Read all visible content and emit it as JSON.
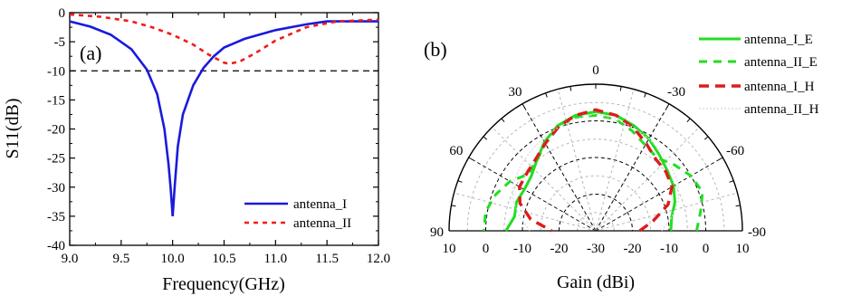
{
  "chart_data": [
    {
      "type": "line",
      "panel_label": "(a)",
      "xlabel": "Frequency(GHz)",
      "ylabel": "S11(dB)",
      "xlim": [
        9.0,
        12.0
      ],
      "ylim": [
        -40,
        0
      ],
      "xticks": [
        "9.0",
        "9.5",
        "10.0",
        "10.5",
        "11.0",
        "11.5",
        "12.0"
      ],
      "yticks": [
        "0",
        "-5",
        "-10",
        "-15",
        "-20",
        "-25",
        "-30",
        "-35",
        "-40"
      ],
      "reference_line": {
        "y": -10,
        "style": "dashed",
        "color": "#000000"
      },
      "legend_position": "bottom-right",
      "series": [
        {
          "name": "antenna_I",
          "color": "#1a1adc",
          "style": "solid",
          "x": [
            9.0,
            9.2,
            9.4,
            9.6,
            9.75,
            9.85,
            9.92,
            9.96,
            9.98,
            10.0,
            10.02,
            10.05,
            10.1,
            10.2,
            10.3,
            10.4,
            10.5,
            10.7,
            11.0,
            11.3,
            11.5,
            12.0
          ],
          "y": [
            -1.5,
            -2.4,
            -3.8,
            -6.3,
            -9.8,
            -14.0,
            -20.0,
            -26.0,
            -30.0,
            -35.0,
            -30.0,
            -23.0,
            -17.5,
            -12.5,
            -9.5,
            -7.5,
            -6.0,
            -4.5,
            -3.0,
            -2.0,
            -1.5,
            -1.5
          ]
        },
        {
          "name": "antenna_II",
          "color": "#ee1c1c",
          "style": "dashed",
          "x": [
            9.0,
            9.3,
            9.6,
            9.8,
            10.0,
            10.2,
            10.35,
            10.5,
            10.55,
            10.65,
            10.8,
            11.0,
            11.3,
            11.6,
            12.0
          ],
          "y": [
            -0.3,
            -0.7,
            -1.5,
            -2.5,
            -3.8,
            -5.5,
            -7.2,
            -8.6,
            -8.8,
            -8.4,
            -7.0,
            -4.8,
            -2.5,
            -1.5,
            -1.2
          ]
        }
      ]
    },
    {
      "type": "polar",
      "panel_label": "(b)",
      "xlabel": "Gain (dBi)",
      "angle_range": [
        -90,
        90
      ],
      "angle_ticks": [
        "0",
        "30",
        "-30",
        "60",
        "-60",
        "90",
        "-90"
      ],
      "radial_ticks": [
        "10",
        "0",
        "-10",
        "-20",
        "-30",
        "-20",
        "-10",
        "0",
        "10"
      ],
      "radial_range": [
        -30,
        10
      ],
      "legend_position": "top-right",
      "series": [
        {
          "name": "antenna_I_E",
          "color": "#22dd22",
          "style": "solid",
          "theta": [
            -90,
            -80,
            -70,
            -60,
            -50,
            -40,
            -30,
            -20,
            -10,
            0,
            10,
            20,
            30,
            40,
            50,
            60,
            70,
            80,
            90
          ],
          "r": [
            -9.5,
            -9,
            -7,
            -5.5,
            -4.5,
            -3,
            -1,
            0.5,
            2,
            2.5,
            2,
            0.5,
            -2,
            -5,
            -7,
            -7.5,
            -7,
            -7.5,
            -5.5
          ]
        },
        {
          "name": "antenna_II_E",
          "color": "#22dd22",
          "style": "dashed",
          "theta": [
            -90,
            -80,
            -70,
            -60,
            -50,
            -40,
            -30,
            -20,
            -10,
            0,
            10,
            20,
            30,
            40,
            50,
            60,
            70,
            80,
            90
          ],
          "r": [
            -2.5,
            -1,
            1,
            0,
            -2,
            -4,
            -3,
            -1,
            1,
            1.5,
            1.5,
            0,
            -2.5,
            -5,
            -6,
            -3,
            -1,
            0.5,
            0.5
          ]
        },
        {
          "name": "antenna_I_H",
          "color": "#dd1c1c",
          "style": "dashed",
          "theta": [
            -90,
            -80,
            -70,
            -60,
            -50,
            -40,
            -30,
            -20,
            -10,
            0,
            10,
            20,
            30,
            40,
            50,
            60,
            70,
            80,
            90
          ],
          "r": [
            -18,
            -14,
            -9,
            -6,
            -5,
            -4.5,
            -2.5,
            0,
            2,
            3,
            2,
            0,
            -2.5,
            -4.5,
            -5.5,
            -6,
            -8,
            -12,
            -18
          ]
        },
        {
          "name": "antenna_II_H",
          "color": "#d8d8d8",
          "style": "dotted",
          "theta": [
            -90,
            -80,
            -70,
            -60,
            -50,
            -40,
            -30,
            -20,
            -10,
            0,
            10,
            20,
            30,
            40,
            50,
            60,
            70,
            80,
            90
          ],
          "r": [
            -12,
            -9,
            -6,
            -4,
            -3,
            -2,
            -1,
            0,
            1,
            2,
            1,
            0,
            -1,
            -2,
            -3,
            -4,
            -6,
            -9,
            -12
          ]
        }
      ]
    }
  ]
}
